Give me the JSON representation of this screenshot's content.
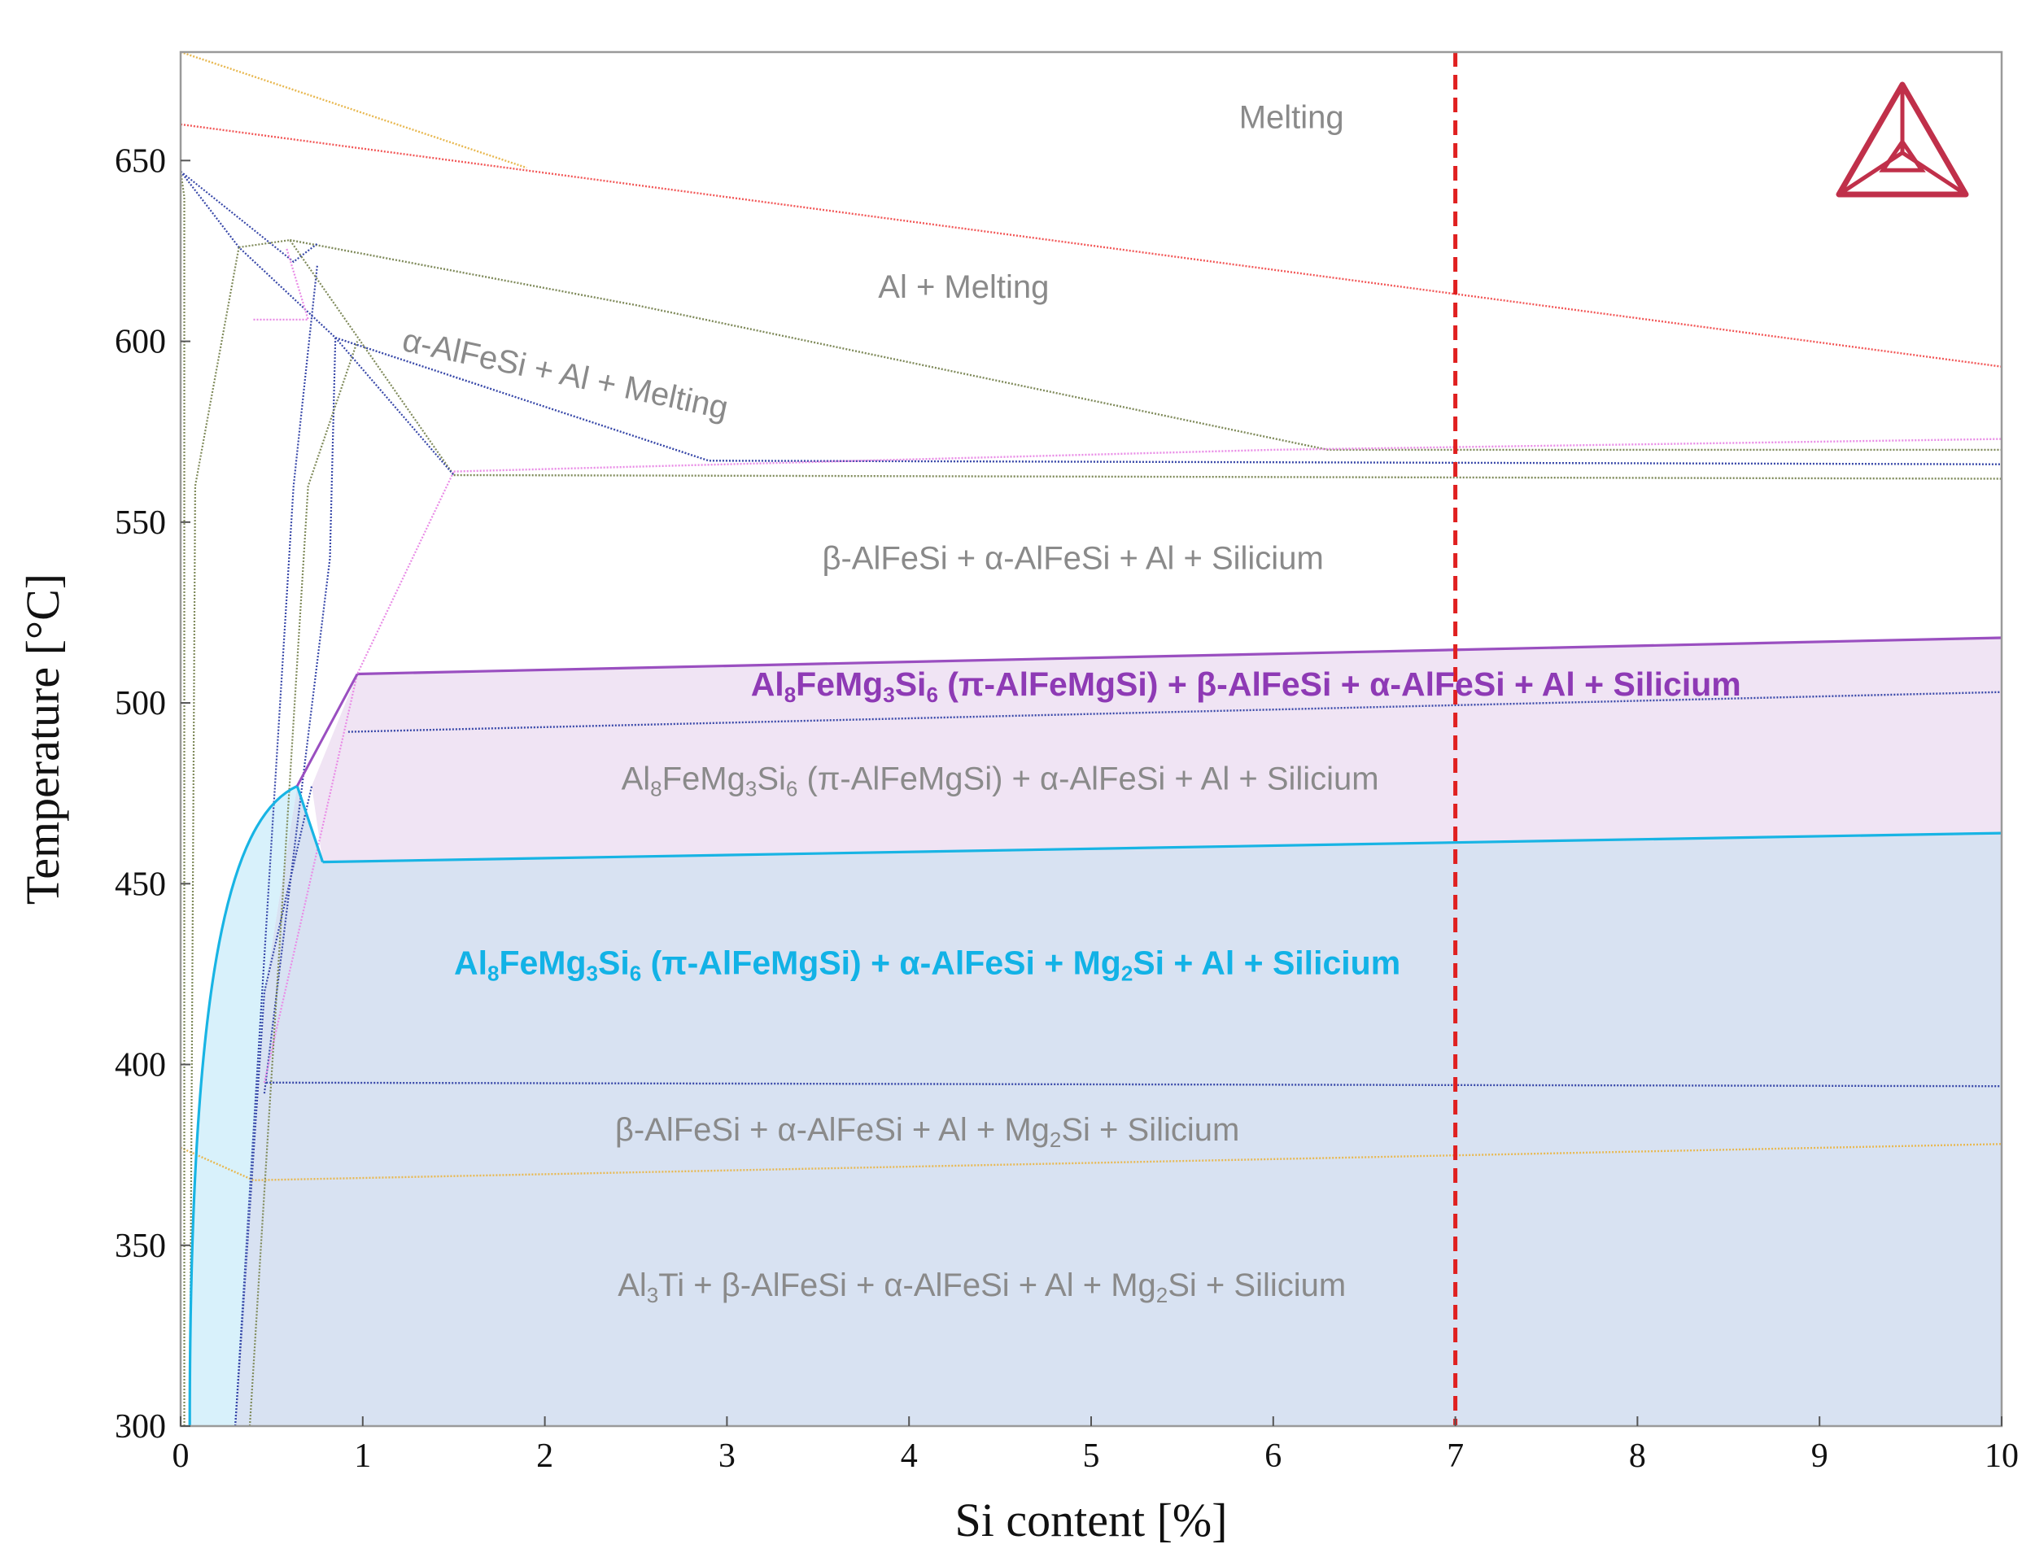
{
  "chart_data": {
    "type": "phase-diagram",
    "title": "",
    "xlabel": "Si content [%]",
    "ylabel": "Temperature [°C]",
    "xlim": [
      0,
      10
    ],
    "ylim": [
      300,
      680
    ],
    "x_ticks": [
      "0",
      "1",
      "2",
      "3",
      "4",
      "5",
      "6",
      "7",
      "8",
      "9",
      "10"
    ],
    "y_ticks": [
      "300",
      "350",
      "400",
      "450",
      "500",
      "550",
      "600",
      "650"
    ],
    "marker_line": {
      "x": 7,
      "color": "#e02020",
      "style": "dashed"
    },
    "logo": "thermo-calc-triangle-icon",
    "colors": {
      "purple_region": "#f0e4f4",
      "blue_region": "#d8e2f2",
      "cyan_region": "#d8f1fb",
      "purple_line": "#9a4fc0",
      "cyan_line": "#18b4e4",
      "liquidus": "#f25757",
      "orange": "#e8b850",
      "olive": "#7f8a5a",
      "navy": "#3747a8",
      "pink": "#e98be6"
    },
    "boundaries": [
      {
        "name": "liquidus",
        "color": "#f25757",
        "points": [
          [
            0,
            660
          ],
          [
            10,
            593
          ]
        ]
      },
      {
        "name": "orange-upper",
        "color": "#e8b850",
        "points": [
          [
            0,
            680
          ],
          [
            1.9,
            648
          ]
        ]
      },
      {
        "name": "olive-al-melting",
        "color": "#7f8a5a",
        "points": [
          [
            0.6,
            628
          ],
          [
            2.5,
            610
          ],
          [
            6.3,
            570
          ],
          [
            10,
            570
          ]
        ]
      },
      {
        "name": "navy-alpha-melting",
        "color": "#3747a8",
        "points": [
          [
            0.85,
            601
          ],
          [
            2.9,
            567
          ],
          [
            10,
            566
          ]
        ]
      },
      {
        "name": "pink-566",
        "color": "#e98be6",
        "points": [
          [
            1.5,
            564
          ],
          [
            6.0,
            570
          ],
          [
            10,
            573
          ]
        ]
      },
      {
        "name": "olive-562",
        "color": "#7f8a5a",
        "points": [
          [
            1.5,
            563
          ],
          [
            10,
            562
          ]
        ]
      },
      {
        "name": "purple-top",
        "color": "#9a4fc0",
        "points": [
          [
            0.97,
            508
          ],
          [
            10,
            518
          ]
        ]
      },
      {
        "name": "navy-492",
        "color": "#3747a8",
        "points": [
          [
            0.92,
            492
          ],
          [
            10,
            503
          ]
        ]
      },
      {
        "name": "cyan-456",
        "color": "#18b4e4",
        "points": [
          [
            0.78,
            456
          ],
          [
            10,
            464
          ]
        ]
      },
      {
        "name": "navy-395",
        "color": "#3747a8",
        "points": [
          [
            0.47,
            395
          ],
          [
            10,
            394
          ]
        ]
      },
      {
        "name": "orange-lower",
        "color": "#e8b850",
        "points": [
          [
            0,
            377
          ],
          [
            0.4,
            368
          ],
          [
            10,
            378
          ]
        ]
      }
    ],
    "regions": [
      {
        "label_parts": [
          [
            "Melting",
            ""
          ]
        ],
        "style": "normal",
        "x": 6.1,
        "y": 659
      },
      {
        "label_parts": [
          [
            "Al + Melting",
            ""
          ]
        ],
        "style": "normal",
        "x": 4.3,
        "y": 612
      },
      {
        "label_parts": [
          [
            "α-AlFeSi + Al + Melting",
            ""
          ]
        ],
        "style": "rotated",
        "x": 2.1,
        "y": 588
      },
      {
        "label_parts": [
          [
            "β-AlFeSi + α-AlFeSi + Al + Silicium",
            ""
          ]
        ],
        "style": "normal",
        "x": 4.9,
        "y": 537
      },
      {
        "label_parts": [
          [
            "Al",
            ""
          ],
          [
            "8",
            "sub"
          ],
          [
            "FeMg",
            ""
          ],
          [
            "3",
            "sub"
          ],
          [
            "Si",
            ""
          ],
          [
            "6",
            "sub"
          ],
          [
            " (π-AlFeMgSi)  + β-AlFeSi + α-AlFeSi + Al + Silicium",
            ""
          ]
        ],
        "style": "bold-purple",
        "x": 5.85,
        "y": 502
      },
      {
        "label_parts": [
          [
            "Al",
            ""
          ],
          [
            "8",
            "sub"
          ],
          [
            "FeMg",
            ""
          ],
          [
            "3",
            "sub"
          ],
          [
            "Si",
            ""
          ],
          [
            "6",
            "sub"
          ],
          [
            " (π-AlFeMgSi) + α-AlFeSi + Al + Silicium",
            ""
          ]
        ],
        "style": "normal",
        "x": 4.5,
        "y": 476
      },
      {
        "label_parts": [
          [
            "Al",
            ""
          ],
          [
            "8",
            "sub"
          ],
          [
            "FeMg",
            ""
          ],
          [
            "3",
            "sub"
          ],
          [
            "Si",
            ""
          ],
          [
            "6",
            "sub"
          ],
          [
            " (π-AlFeMgSi)  + α-AlFeSi + Mg",
            ""
          ],
          [
            "2",
            "sub"
          ],
          [
            "Si + Al + Silicium",
            ""
          ]
        ],
        "style": "bold-blue",
        "x": 4.1,
        "y": 425
      },
      {
        "label_parts": [
          [
            "β-AlFeSi + α-AlFeSi + Al + Mg",
            ""
          ],
          [
            "2",
            "sub"
          ],
          [
            "Si + Silicium",
            ""
          ]
        ],
        "style": "normal",
        "x": 4.1,
        "y": 379
      },
      {
        "label_parts": [
          [
            "Al",
            ""
          ],
          [
            "3",
            "sub"
          ],
          [
            "Ti + β-AlFeSi + α-AlFeSi + Al + Mg",
            ""
          ],
          [
            "2",
            "sub"
          ],
          [
            "Si + Silicium",
            ""
          ]
        ],
        "style": "normal",
        "x": 4.4,
        "y": 336
      }
    ]
  }
}
